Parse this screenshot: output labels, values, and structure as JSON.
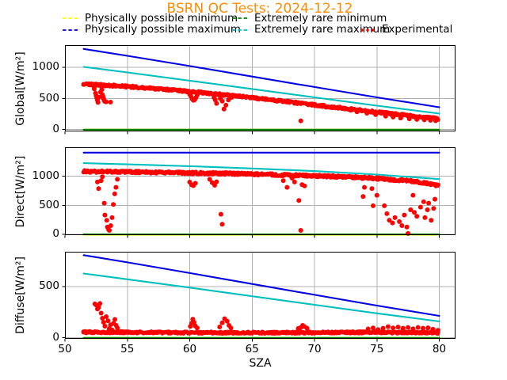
{
  "title": {
    "text": "BSRN QC Tests: 2024-12-12",
    "color": "#ff8c00"
  },
  "xlabel": "SZA",
  "colors": {
    "physically_possible_min": "#ffff00",
    "physically_possible_max": "#0000e0",
    "extremely_rare_min": "#008000",
    "extremely_rare_max": "#00bfbf",
    "experimental": "#ff0000",
    "grid": "#b0b0b0",
    "axes": "#000000",
    "title": "#ff8c00"
  },
  "legend": {
    "items": [
      {
        "label": "Physically possible minimum",
        "color": "#ffff00",
        "style": "dashed"
      },
      {
        "label": "Physically possible maximum",
        "color": "#0000e0",
        "style": "dashed"
      },
      {
        "label": "Extremely rare minimum",
        "color": "#008000",
        "style": "dashed"
      },
      {
        "label": "Extremely rare maximum",
        "color": "#00bfbf",
        "style": "dashed"
      },
      {
        "label": "Experimental",
        "color": "#ff0000",
        "style": "dotted"
      }
    ]
  },
  "chart_data": [
    {
      "type": "scatter",
      "ylabel": "Global[W/m²]",
      "xlabel": "SZA",
      "xlim": [
        50,
        81.3
      ],
      "ylim": [
        -30,
        1355
      ],
      "xticks": [
        50,
        55,
        60,
        65,
        70,
        75,
        80
      ],
      "yticks": [
        0,
        500,
        1000
      ],
      "grid": true,
      "lines": [
        {
          "name": "Physically possible minimum",
          "color": "#ffff00",
          "x": [
            51.5,
            80
          ],
          "y": [
            -4,
            -4
          ]
        },
        {
          "name": "Physically possible maximum",
          "color": "#0000e0",
          "x": [
            51.5,
            55,
            60,
            65,
            70,
            75,
            80
          ],
          "y": [
            1294,
            1183,
            1019,
            851,
            683,
            517,
            358
          ]
        },
        {
          "name": "Extremely rare minimum",
          "color": "#008000",
          "x": [
            51.5,
            80
          ],
          "y": [
            -2,
            -2
          ]
        },
        {
          "name": "Extremely rare maximum",
          "color": "#00bfbf",
          "x": [
            51.5,
            55,
            60,
            65,
            70,
            75,
            80
          ],
          "y": [
            1006,
            916,
            785,
            651,
            516,
            383,
            256
          ]
        }
      ],
      "experimental": {
        "name": "Experimental",
        "color": "#ff0000",
        "band_x": [
          51.5,
          53,
          55,
          57,
          59,
          61,
          63,
          65,
          67,
          69,
          71,
          73,
          75,
          77,
          79,
          80
        ],
        "band_y": [
          728,
          714,
          690,
          660,
          628,
          592,
          552,
          510,
          465,
          418,
          372,
          326,
          280,
          235,
          192,
          172
        ],
        "band_halfwidth": 24,
        "outliers": [
          [
            52.35,
            655
          ],
          [
            52.45,
            585
          ],
          [
            52.5,
            545
          ],
          [
            52.55,
            505
          ],
          [
            52.6,
            470
          ],
          [
            52.65,
            435
          ],
          [
            52.75,
            520
          ],
          [
            52.85,
            600
          ],
          [
            52.95,
            640
          ],
          [
            53.0,
            560
          ],
          [
            53.05,
            530
          ],
          [
            53.1,
            495
          ],
          [
            53.15,
            465
          ],
          [
            53.2,
            450
          ],
          [
            53.3,
            445
          ],
          [
            53.65,
            440
          ],
          [
            60.0,
            565
          ],
          [
            60.1,
            530
          ],
          [
            60.2,
            490
          ],
          [
            60.3,
            468
          ],
          [
            60.4,
            478
          ],
          [
            60.5,
            515
          ],
          [
            60.6,
            555
          ],
          [
            61.95,
            515
          ],
          [
            62.05,
            475
          ],
          [
            62.15,
            420
          ],
          [
            62.45,
            498
          ],
          [
            62.6,
            455
          ],
          [
            62.75,
            330
          ],
          [
            62.9,
            390
          ],
          [
            63.1,
            475
          ],
          [
            63.35,
            515
          ],
          [
            68.9,
            140
          ],
          [
            72.9,
            310
          ],
          [
            73.4,
            285
          ],
          [
            74.2,
            262
          ],
          [
            74.9,
            240
          ],
          [
            75.7,
            215
          ],
          [
            76.3,
            200
          ],
          [
            76.9,
            185
          ],
          [
            77.6,
            172
          ],
          [
            78.2,
            162
          ],
          [
            78.8,
            155
          ],
          [
            79.3,
            148
          ],
          [
            79.7,
            142
          ]
        ]
      }
    },
    {
      "type": "scatter",
      "ylabel": "Direct[W/m²]",
      "xlabel": "SZA",
      "xlim": [
        50,
        81.3
      ],
      "ylim": [
        -14,
        1500
      ],
      "xticks": [
        50,
        55,
        60,
        65,
        70,
        75,
        80
      ],
      "yticks": [
        0,
        500,
        1000
      ],
      "grid": true,
      "lines": [
        {
          "name": "Physically possible minimum",
          "color": "#ffff00",
          "x": [
            51.5,
            80
          ],
          "y": [
            -4,
            -4
          ]
        },
        {
          "name": "Physically possible maximum",
          "color": "#0000e0",
          "x": [
            51.5,
            80
          ],
          "y": [
            1407,
            1407
          ]
        },
        {
          "name": "Extremely rare minimum",
          "color": "#008000",
          "x": [
            51.5,
            80
          ],
          "y": [
            -2,
            -2
          ]
        },
        {
          "name": "Extremely rare maximum",
          "color": "#00bfbf",
          "x": [
            51.5,
            55,
            60,
            65,
            70,
            75,
            80
          ],
          "y": [
            1226,
            1206,
            1174,
            1135,
            1089,
            1030,
            952
          ]
        }
      ],
      "experimental": {
        "name": "Experimental",
        "color": "#ff0000",
        "band_x": [
          51.5,
          55,
          60,
          65,
          70,
          73,
          75,
          76,
          77,
          78,
          79,
          80
        ],
        "band_y": [
          1085,
          1075,
          1058,
          1038,
          1008,
          985,
          962,
          948,
          930,
          908,
          878,
          838
        ],
        "band_halfwidth": 28,
        "outliers": [
          [
            52.6,
            901
          ],
          [
            52.7,
            788
          ],
          [
            52.9,
            925
          ],
          [
            53.0,
            993
          ],
          [
            53.15,
            537
          ],
          [
            53.2,
            332
          ],
          [
            53.35,
            242
          ],
          [
            53.4,
            127
          ],
          [
            53.5,
            82
          ],
          [
            53.56,
            68
          ],
          [
            53.67,
            150
          ],
          [
            53.78,
            287
          ],
          [
            53.88,
            515
          ],
          [
            53.99,
            697
          ],
          [
            54.09,
            810
          ],
          [
            54.2,
            947
          ],
          [
            60.0,
            900
          ],
          [
            60.15,
            852
          ],
          [
            60.3,
            838
          ],
          [
            60.45,
            880
          ],
          [
            61.6,
            948
          ],
          [
            61.8,
            890
          ],
          [
            62.0,
            845
          ],
          [
            62.15,
            905
          ],
          [
            62.5,
            346
          ],
          [
            62.6,
            173
          ],
          [
            67.5,
            925
          ],
          [
            67.8,
            810
          ],
          [
            68.2,
            968
          ],
          [
            68.4,
            901
          ],
          [
            68.75,
            583
          ],
          [
            68.9,
            68
          ],
          [
            69.0,
            856
          ],
          [
            69.2,
            833
          ],
          [
            73.9,
            651
          ],
          [
            74.0,
            810
          ],
          [
            74.6,
            788
          ],
          [
            74.7,
            492
          ],
          [
            75.0,
            673
          ],
          [
            75.6,
            492
          ],
          [
            75.8,
            355
          ],
          [
            76.0,
            242
          ],
          [
            76.25,
            196
          ],
          [
            76.45,
            287
          ],
          [
            76.8,
            219
          ],
          [
            77.0,
            150
          ],
          [
            77.2,
            332
          ],
          [
            77.4,
            127
          ],
          [
            77.5,
            14
          ],
          [
            77.7,
            423
          ],
          [
            77.9,
            673
          ],
          [
            78.0,
            378
          ],
          [
            78.2,
            310
          ],
          [
            78.5,
            469
          ],
          [
            78.75,
            560
          ],
          [
            78.85,
            287
          ],
          [
            79.05,
            423
          ],
          [
            79.15,
            537
          ],
          [
            79.35,
            242
          ],
          [
            79.55,
            446
          ],
          [
            79.65,
            605
          ]
        ]
      }
    },
    {
      "type": "scatter",
      "ylabel": "Diffuse[W/m²]",
      "xlabel": "SZA",
      "xlim": [
        50,
        81.3
      ],
      "ylim": [
        -11.5,
        840
      ],
      "xticks": [
        50,
        55,
        60,
        65,
        70,
        75,
        80
      ],
      "yticks": [
        0,
        500
      ],
      "grid": true,
      "lines": [
        {
          "name": "Physically possible minimum",
          "color": "#ffff00",
          "x": [
            51.5,
            80
          ],
          "y": [
            -4,
            -4
          ]
        },
        {
          "name": "Physically possible maximum",
          "color": "#0000e0",
          "x": [
            51.5,
            55,
            60,
            65,
            70,
            75,
            80
          ],
          "y": [
            807,
            736,
            632,
            525,
            419,
            314,
            213
          ]
        },
        {
          "name": "Extremely rare minimum",
          "color": "#008000",
          "x": [
            51.5,
            80
          ],
          "y": [
            -2,
            -2
          ]
        },
        {
          "name": "Extremely rare maximum",
          "color": "#00bfbf",
          "x": [
            51.5,
            55,
            60,
            65,
            70,
            75,
            80
          ],
          "y": [
            627,
            571,
            489,
            405,
            321,
            238,
            159
          ]
        }
      ],
      "experimental": {
        "name": "Experimental",
        "color": "#ff0000",
        "band_x": [
          51.5,
          55,
          60,
          65,
          70,
          75,
          80
        ],
        "band_y": [
          55,
          52,
          50,
          48,
          50,
          53,
          48
        ],
        "band_halfwidth": 13,
        "outliers": [
          [
            52.4,
            330
          ],
          [
            52.5,
            319
          ],
          [
            52.6,
            280
          ],
          [
            52.7,
            295
          ],
          [
            52.8,
            334
          ],
          [
            52.9,
            240
          ],
          [
            53.0,
            190
          ],
          [
            53.1,
            150
          ],
          [
            53.2,
            112
          ],
          [
            53.3,
            205
          ],
          [
            53.45,
            165
          ],
          [
            53.55,
            88
          ],
          [
            53.65,
            125
          ],
          [
            53.78,
            75
          ],
          [
            53.9,
            140
          ],
          [
            54.0,
            178
          ],
          [
            54.1,
            120
          ],
          [
            54.2,
            95
          ],
          [
            60.05,
            110
          ],
          [
            60.15,
            140
          ],
          [
            60.25,
            180
          ],
          [
            60.35,
            150
          ],
          [
            60.45,
            115
          ],
          [
            60.6,
            95
          ],
          [
            62.4,
            105
          ],
          [
            62.6,
            145
          ],
          [
            62.8,
            185
          ],
          [
            63.0,
            160
          ],
          [
            63.15,
            120
          ],
          [
            63.3,
            95
          ],
          [
            68.7,
            90
          ],
          [
            68.9,
            100
          ],
          [
            69.05,
            120
          ],
          [
            69.2,
            108
          ],
          [
            69.4,
            92
          ],
          [
            74.3,
            85
          ],
          [
            74.7,
            95
          ],
          [
            75.1,
            78
          ],
          [
            75.5,
            92
          ],
          [
            75.9,
            108
          ],
          [
            76.3,
            95
          ],
          [
            76.7,
            104
          ],
          [
            77.1,
            92
          ],
          [
            77.5,
            100
          ],
          [
            77.9,
            86
          ],
          [
            78.3,
            100
          ],
          [
            78.7,
            92
          ],
          [
            79.1,
            96
          ],
          [
            79.5,
            82
          ],
          [
            79.9,
            72
          ]
        ]
      }
    }
  ]
}
